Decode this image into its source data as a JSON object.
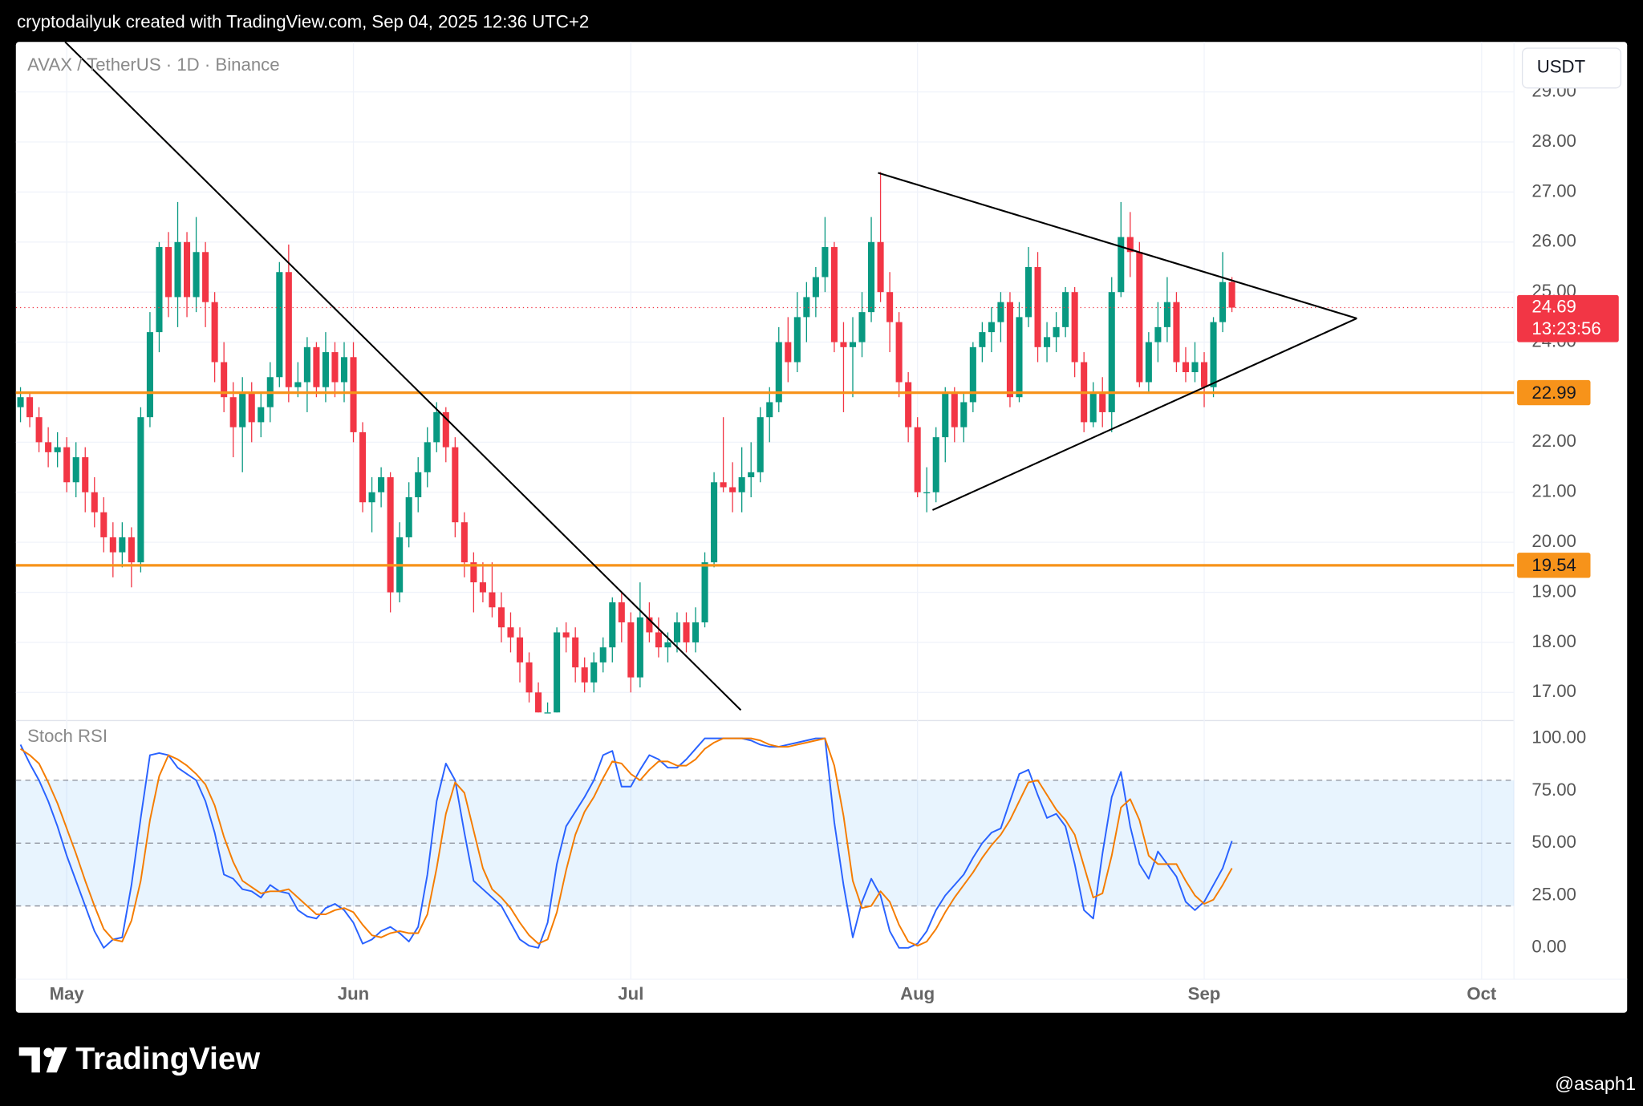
{
  "header": "cryptodailyuk created with TradingView.com, Sep 04, 2025 12:36 UTC+2",
  "brand": "TradingView",
  "watermark": "@asaph1",
  "chart_data": {
    "type": "candlestick",
    "title": "AVAX / TetherUS · 1D · Binance",
    "currency": "USDT",
    "up_color": "#089981",
    "down_color": "#f23645",
    "grid": true,
    "ylim": [
      16.5,
      30.0
    ],
    "yticks": [
      {
        "value": 17,
        "label": "17.00"
      },
      {
        "value": 18,
        "label": "18.00"
      },
      {
        "value": 19,
        "label": "19.00"
      },
      {
        "value": 20,
        "label": "20.00"
      },
      {
        "value": 21,
        "label": "21.00"
      },
      {
        "value": 22,
        "label": "22.00"
      },
      {
        "value": 23,
        "label": "23.00"
      },
      {
        "value": 24,
        "label": "24.00"
      },
      {
        "value": 25,
        "label": "25.00"
      },
      {
        "value": 26,
        "label": "26.00"
      },
      {
        "value": 27,
        "label": "27.00"
      },
      {
        "value": 28,
        "label": "28.00"
      },
      {
        "value": 29,
        "label": "29.00"
      }
    ],
    "hlines": [
      22.99,
      19.54
    ],
    "hline_color": "#f7931a",
    "last_price": 24.69,
    "countdown": "13:23:56",
    "categories": [
      null,
      null,
      null,
      null,
      null,
      "May",
      null,
      null,
      null,
      null,
      null,
      null,
      null,
      null,
      null,
      null,
      null,
      null,
      null,
      null,
      null,
      null,
      null,
      null,
      null,
      null,
      null,
      null,
      null,
      null,
      null,
      null,
      null,
      null,
      null,
      null,
      "Jun",
      null,
      null,
      null,
      null,
      null,
      null,
      null,
      null,
      null,
      null,
      null,
      null,
      null,
      null,
      null,
      null,
      null,
      null,
      null,
      null,
      null,
      null,
      null,
      null,
      null,
      null,
      null,
      null,
      null,
      "Jul",
      null,
      null,
      null,
      null,
      null,
      null,
      null,
      null,
      null,
      null,
      null,
      null,
      null,
      null,
      null,
      null,
      null,
      null,
      null,
      null,
      null,
      null,
      null,
      null,
      null,
      null,
      null,
      null,
      null,
      null,
      "Aug",
      null,
      null,
      null,
      null,
      null,
      null,
      null,
      null,
      null,
      null,
      null,
      null,
      null,
      null,
      null,
      null,
      null,
      null,
      null,
      null,
      null,
      null,
      null,
      null,
      null,
      null,
      null,
      null,
      null,
      null,
      "Sep",
      null,
      null,
      null,
      null,
      null,
      null,
      null,
      null,
      null,
      null,
      null,
      null,
      null,
      null,
      null,
      null,
      null,
      null,
      null,
      null,
      null,
      null,
      null,
      null,
      null,
      null,
      null,
      null,
      null,
      "Oct",
      null,
      null,
      null
    ],
    "ohlc": [
      [
        22.7,
        23.1,
        22.4,
        22.9
      ],
      [
        22.9,
        23.0,
        22.3,
        22.5
      ],
      [
        22.5,
        22.7,
        21.8,
        22.0
      ],
      [
        22.0,
        22.3,
        21.5,
        21.8
      ],
      [
        21.8,
        22.2,
        21.5,
        21.9
      ],
      [
        21.9,
        22.1,
        21.0,
        21.2
      ],
      [
        21.2,
        22.0,
        20.9,
        21.7
      ],
      [
        21.7,
        21.9,
        20.6,
        21.0
      ],
      [
        21.0,
        21.3,
        20.3,
        20.6
      ],
      [
        20.6,
        20.9,
        19.8,
        20.1
      ],
      [
        20.1,
        20.4,
        19.3,
        19.8
      ],
      [
        19.8,
        20.4,
        19.5,
        20.1
      ],
      [
        20.1,
        20.3,
        19.1,
        19.6
      ],
      [
        19.6,
        22.7,
        19.4,
        22.5
      ],
      [
        22.5,
        24.6,
        22.3,
        24.2
      ],
      [
        24.2,
        26.0,
        23.8,
        25.9
      ],
      [
        25.9,
        26.2,
        24.5,
        24.9
      ],
      [
        24.9,
        26.8,
        24.3,
        26.0
      ],
      [
        26.0,
        26.2,
        24.5,
        24.9
      ],
      [
        24.9,
        26.5,
        24.6,
        25.8
      ],
      [
        25.8,
        26.0,
        24.3,
        24.8
      ],
      [
        24.8,
        25.0,
        23.2,
        23.6
      ],
      [
        23.6,
        24.0,
        22.6,
        22.9
      ],
      [
        22.9,
        23.2,
        21.7,
        22.3
      ],
      [
        22.3,
        23.3,
        21.4,
        23.0
      ],
      [
        23.0,
        23.2,
        22.0,
        22.4
      ],
      [
        22.4,
        23.0,
        22.1,
        22.7
      ],
      [
        22.7,
        23.6,
        22.4,
        23.3
      ],
      [
        23.3,
        25.6,
        23.1,
        25.4
      ],
      [
        25.4,
        25.95,
        22.8,
        23.1
      ],
      [
        23.1,
        23.6,
        22.9,
        23.2
      ],
      [
        23.2,
        24.1,
        22.6,
        23.9
      ],
      [
        23.9,
        24.0,
        22.9,
        23.1
      ],
      [
        23.1,
        24.2,
        22.8,
        23.8
      ],
      [
        23.8,
        24.0,
        22.9,
        23.2
      ],
      [
        23.2,
        24.0,
        22.8,
        23.7
      ],
      [
        23.7,
        24.0,
        22.0,
        22.2
      ],
      [
        22.2,
        22.4,
        20.6,
        20.8
      ],
      [
        20.8,
        21.3,
        20.2,
        21.0
      ],
      [
        21.0,
        21.5,
        20.7,
        21.3
      ],
      [
        21.3,
        21.4,
        18.6,
        19.0
      ],
      [
        19.0,
        20.4,
        18.8,
        20.1
      ],
      [
        20.1,
        21.2,
        19.9,
        20.9
      ],
      [
        20.9,
        21.7,
        20.6,
        21.4
      ],
      [
        21.4,
        22.3,
        21.1,
        22.0
      ],
      [
        22.0,
        22.8,
        21.8,
        22.6
      ],
      [
        22.6,
        22.7,
        21.6,
        21.9
      ],
      [
        21.9,
        22.1,
        20.1,
        20.4
      ],
      [
        20.4,
        20.6,
        19.3,
        19.6
      ],
      [
        19.6,
        19.8,
        18.6,
        19.2
      ],
      [
        19.2,
        19.6,
        18.8,
        19.0
      ],
      [
        19.0,
        19.6,
        18.5,
        18.7
      ],
      [
        18.7,
        19.0,
        18.0,
        18.3
      ],
      [
        18.3,
        18.6,
        17.8,
        18.1
      ],
      [
        18.1,
        18.3,
        17.2,
        17.6
      ],
      [
        17.6,
        17.8,
        16.8,
        17.0
      ],
      [
        17.0,
        17.2,
        16.6,
        16.6
      ],
      [
        16.6,
        16.8,
        16.6,
        16.6
      ],
      [
        16.6,
        18.3,
        16.6,
        18.2
      ],
      [
        18.2,
        18.4,
        17.8,
        18.1
      ],
      [
        18.1,
        18.3,
        17.2,
        17.5
      ],
      [
        17.5,
        17.7,
        17.0,
        17.2
      ],
      [
        17.2,
        17.8,
        17.0,
        17.6
      ],
      [
        17.6,
        18.1,
        17.4,
        17.9
      ],
      [
        17.9,
        18.9,
        17.6,
        18.8
      ],
      [
        18.8,
        19.0,
        18.0,
        18.4
      ],
      [
        18.4,
        18.6,
        17.0,
        17.3
      ],
      [
        17.3,
        19.2,
        17.1,
        18.5
      ],
      [
        18.5,
        18.8,
        18.0,
        18.2
      ],
      [
        18.2,
        18.5,
        17.7,
        17.9
      ],
      [
        17.9,
        18.2,
        17.6,
        18.0
      ],
      [
        18.0,
        18.6,
        17.8,
        18.4
      ],
      [
        18.4,
        18.6,
        17.8,
        18.0
      ],
      [
        18.0,
        18.7,
        17.8,
        18.4
      ],
      [
        18.4,
        19.8,
        18.3,
        19.6
      ],
      [
        19.6,
        21.4,
        19.5,
        21.2
      ],
      [
        21.2,
        22.5,
        21.0,
        21.1
      ],
      [
        21.1,
        21.6,
        20.6,
        21.0
      ],
      [
        21.0,
        21.9,
        20.6,
        21.3
      ],
      [
        21.3,
        22.0,
        20.9,
        21.4
      ],
      [
        21.4,
        22.7,
        21.2,
        22.5
      ],
      [
        22.5,
        23.1,
        22.0,
        22.8
      ],
      [
        22.8,
        24.3,
        22.6,
        24.0
      ],
      [
        24.0,
        24.5,
        23.2,
        23.6
      ],
      [
        23.6,
        25.0,
        23.4,
        24.5
      ],
      [
        24.5,
        25.2,
        24.0,
        24.9
      ],
      [
        24.9,
        25.5,
        24.5,
        25.3
      ],
      [
        25.3,
        26.5,
        25.0,
        25.9
      ],
      [
        25.9,
        26.0,
        23.8,
        24.0
      ],
      [
        24.0,
        24.4,
        22.6,
        23.9
      ],
      [
        23.9,
        24.5,
        22.9,
        24.0
      ],
      [
        24.0,
        25.0,
        23.7,
        24.6
      ],
      [
        24.6,
        26.5,
        24.4,
        26.0
      ],
      [
        26.0,
        27.4,
        24.8,
        25.0
      ],
      [
        25.0,
        25.4,
        23.8,
        24.4
      ],
      [
        24.4,
        24.6,
        22.9,
        23.2
      ],
      [
        23.2,
        23.4,
        22.0,
        22.3
      ],
      [
        22.3,
        22.5,
        20.9,
        21.0
      ],
      [
        21.0,
        21.5,
        20.6,
        21.0
      ],
      [
        21.0,
        22.3,
        20.8,
        22.1
      ],
      [
        22.1,
        23.1,
        21.6,
        23.0
      ],
      [
        23.0,
        23.1,
        22.0,
        22.3
      ],
      [
        22.3,
        23.0,
        22.0,
        22.8
      ],
      [
        22.8,
        24.0,
        22.6,
        23.9
      ],
      [
        23.9,
        24.4,
        23.6,
        24.2
      ],
      [
        24.2,
        24.7,
        23.8,
        24.4
      ],
      [
        24.4,
        25.0,
        24.0,
        24.8
      ],
      [
        24.8,
        25.0,
        22.7,
        22.9
      ],
      [
        22.9,
        24.8,
        22.8,
        24.5
      ],
      [
        24.5,
        25.9,
        24.3,
        25.5
      ],
      [
        25.5,
        25.8,
        23.6,
        23.9
      ],
      [
        23.9,
        24.4,
        23.6,
        24.1
      ],
      [
        24.1,
        24.6,
        23.8,
        24.3
      ],
      [
        24.3,
        25.1,
        24.1,
        25.0
      ],
      [
        25.0,
        25.1,
        23.3,
        23.6
      ],
      [
        23.6,
        23.8,
        22.2,
        22.4
      ],
      [
        22.4,
        23.2,
        22.3,
        23.0
      ],
      [
        23.0,
        23.3,
        22.3,
        22.6
      ],
      [
        22.6,
        25.3,
        22.2,
        25.0
      ],
      [
        25.0,
        26.8,
        24.9,
        26.1
      ],
      [
        26.1,
        26.6,
        25.3,
        25.8
      ],
      [
        25.8,
        26.0,
        23.1,
        23.2
      ],
      [
        23.2,
        24.2,
        23.0,
        24.0
      ],
      [
        24.0,
        24.8,
        23.6,
        24.3
      ],
      [
        24.3,
        25.3,
        24.0,
        24.8
      ],
      [
        24.8,
        25.0,
        23.4,
        23.6
      ],
      [
        23.6,
        23.9,
        23.2,
        23.4
      ],
      [
        23.4,
        24.0,
        23.2,
        23.6
      ],
      [
        23.6,
        23.8,
        22.7,
        23.1
      ],
      [
        23.1,
        24.5,
        22.9,
        24.4
      ],
      [
        24.4,
        25.8,
        24.2,
        25.2
      ],
      [
        25.2,
        25.3,
        24.6,
        24.69
      ],
      null,
      null,
      null,
      null,
      null,
      null,
      null,
      null,
      null,
      null,
      null,
      null,
      null,
      null,
      null,
      null,
      null,
      null,
      null,
      null,
      null,
      null,
      null,
      null,
      null,
      null,
      null,
      null,
      null,
      null
    ],
    "indicator": {
      "type": "line",
      "title": "Stoch RSI",
      "ylim": [
        -15,
        108.5
      ],
      "yticks": [
        {
          "value": 0,
          "label": "0.00"
        },
        {
          "value": 25,
          "label": "25.00"
        },
        {
          "value": 50,
          "label": "50.00"
        },
        {
          "value": 75,
          "label": "75.00"
        },
        {
          "value": 100,
          "label": "100.00"
        }
      ],
      "bands": [
        20,
        50,
        80
      ],
      "band_color": "#2196f3",
      "series": [
        {
          "color": "#2962ff",
          "values": [
            97,
            88,
            80,
            70,
            58,
            44,
            32,
            20,
            8,
            0,
            4,
            5,
            30,
            62,
            92,
            93,
            92,
            86,
            83,
            80,
            70,
            55,
            35,
            33,
            28,
            27,
            24,
            30,
            27,
            26,
            18,
            15,
            14,
            19,
            21,
            18,
            12,
            2,
            4,
            8,
            10,
            7,
            3,
            10,
            35,
            70,
            88,
            80,
            55,
            32,
            28,
            24,
            20,
            12,
            4,
            1,
            0,
            12,
            40,
            58,
            65,
            72,
            80,
            92,
            94,
            77,
            77,
            85,
            92,
            90,
            86,
            86,
            90,
            95,
            100,
            100,
            100,
            100,
            100,
            99,
            97,
            96,
            96,
            97,
            98,
            99,
            100,
            100,
            60,
            30,
            5,
            22,
            33,
            25,
            8,
            0,
            0,
            2,
            8,
            18,
            25,
            30,
            35,
            43,
            50,
            55,
            57,
            70,
            83,
            85,
            73,
            62,
            64,
            58,
            40,
            18,
            14,
            45,
            72,
            84,
            58,
            40,
            33,
            46,
            40,
            34,
            22,
            18,
            22,
            30,
            38,
            51,
            null,
            null,
            null,
            null,
            null,
            null,
            null,
            null,
            null,
            null,
            null,
            null,
            null,
            null,
            null,
            null,
            null,
            null,
            null,
            null,
            null,
            null,
            null,
            null,
            null,
            null,
            null,
            null,
            null,
            null
          ]
        },
        {
          "color": "#f57c00",
          "values": [
            95,
            92,
            88,
            79,
            69,
            57,
            45,
            32,
            20,
            9,
            4,
            3,
            13,
            32,
            61,
            82,
            92,
            90,
            87,
            83,
            78,
            68,
            53,
            41,
            32,
            29,
            26,
            27,
            27,
            28,
            24,
            20,
            16,
            16,
            18,
            19,
            17,
            11,
            6,
            5,
            7,
            8,
            7,
            7,
            16,
            38,
            64,
            79,
            74,
            56,
            38,
            28,
            24,
            19,
            12,
            6,
            2,
            4,
            17,
            37,
            54,
            65,
            72,
            81,
            89,
            88,
            83,
            80,
            85,
            89,
            89,
            87,
            87,
            90,
            95,
            98,
            100,
            100,
            100,
            100,
            99,
            97,
            96,
            96,
            97,
            98,
            99,
            100,
            87,
            63,
            32,
            19,
            20,
            27,
            22,
            11,
            3,
            1,
            3,
            9,
            17,
            24,
            30,
            36,
            43,
            49,
            54,
            61,
            70,
            79,
            80,
            73,
            66,
            61,
            54,
            39,
            24,
            26,
            44,
            67,
            71,
            61,
            44,
            40,
            40,
            40,
            32,
            25,
            21,
            23,
            30,
            38,
            null,
            null,
            null,
            null,
            null,
            null,
            null,
            null,
            null,
            null,
            null,
            null,
            null,
            null,
            null,
            null,
            null,
            null,
            null,
            null,
            null,
            null,
            null,
            null,
            null,
            null,
            null,
            null,
            null,
            null
          ]
        }
      ]
    }
  }
}
